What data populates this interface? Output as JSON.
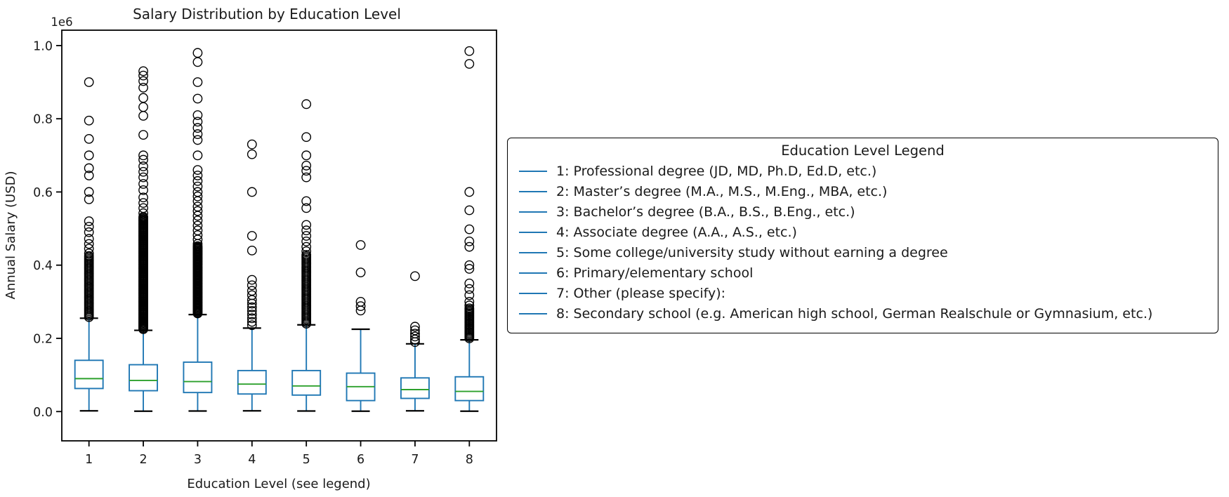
{
  "chart_data": {
    "type": "boxplot",
    "title": "Salary Distribution by Education Level",
    "xlabel": "Education Level (see legend)",
    "ylabel": "Annual Salary (USD)",
    "offset_label": "1e6",
    "x_categories": [
      "1",
      "2",
      "3",
      "4",
      "5",
      "6",
      "7",
      "8"
    ],
    "y_tick_labels": [
      "0.0",
      "0.2",
      "0.4",
      "0.6",
      "0.8",
      "1.0"
    ],
    "y_tick_values": [
      0,
      200000,
      400000,
      600000,
      800000,
      1000000
    ],
    "ylim": [
      -80000,
      1042000
    ],
    "grid": false,
    "colors": {
      "box": "#1f77b4",
      "whisker": "#1f77b4",
      "median": "#2ca02c",
      "cap": "#000000",
      "flier": "#000000",
      "text": "#1a1a1a",
      "spine": "#000000"
    },
    "groups": [
      {
        "label": "1",
        "whislo": 2000,
        "q1": 63000,
        "med": 90000,
        "q3": 140000,
        "whishi": 255000,
        "fliers": [
          900000,
          795000,
          745000,
          700000,
          665000,
          645000,
          600000,
          580000,
          520000,
          505000,
          490000,
          472000,
          458000,
          445000,
          432000
        ],
        "flier_band": {
          "from": 258000,
          "to": 425000,
          "count": 42
        }
      },
      {
        "label": "2",
        "whislo": 1000,
        "q1": 57000,
        "med": 85000,
        "q3": 128000,
        "whishi": 222000,
        "fliers": [
          930000,
          918000,
          903000,
          885000,
          857000,
          832000,
          808000,
          756000,
          700000,
          688000,
          670000,
          655000,
          640000,
          622000,
          605000,
          585000,
          570000,
          556000,
          542000
        ],
        "flier_band": {
          "from": 225000,
          "to": 532000,
          "count": 110
        }
      },
      {
        "label": "3",
        "whislo": 1500,
        "q1": 52000,
        "med": 82000,
        "q3": 135000,
        "whishi": 265000,
        "fliers": [
          980000,
          955000,
          900000,
          855000,
          810000,
          792000,
          775000,
          758000,
          742000,
          700000,
          660000,
          645000,
          630000,
          615000,
          600000,
          588000,
          575000,
          560000,
          548000,
          535000,
          522000,
          508000,
          495000,
          482000,
          470000,
          458000
        ],
        "flier_band": {
          "from": 268000,
          "to": 452000,
          "count": 72
        }
      },
      {
        "label": "4",
        "whislo": 2000,
        "q1": 48000,
        "med": 75000,
        "q3": 112000,
        "whishi": 228000,
        "fliers": [
          730000,
          703000,
          600000,
          480000,
          440000,
          360000,
          345000,
          330000,
          318000,
          305000,
          295000,
          285000,
          275000,
          265000,
          255000,
          245000,
          236000
        ],
        "flier_band": null
      },
      {
        "label": "5",
        "whislo": 1500,
        "q1": 45000,
        "med": 70000,
        "q3": 112000,
        "whishi": 237000,
        "fliers": [
          840000,
          750000,
          700000,
          672000,
          658000,
          640000,
          575000,
          556000,
          510000,
          495000,
          480000,
          465000,
          450000,
          438000
        ],
        "flier_band": {
          "from": 240000,
          "to": 428000,
          "count": 48
        }
      },
      {
        "label": "6",
        "whislo": 1000,
        "q1": 30000,
        "med": 68000,
        "q3": 105000,
        "whishi": 225000,
        "fliers": [
          455000,
          380000,
          300000,
          288000,
          276000
        ],
        "flier_band": null
      },
      {
        "label": "7",
        "whislo": 2000,
        "q1": 36000,
        "med": 60000,
        "q3": 92000,
        "whishi": 185000,
        "fliers": [
          370000,
          232000,
          222000,
          213000,
          205000,
          197000,
          190000
        ],
        "flier_band": null
      },
      {
        "label": "8",
        "whislo": 1000,
        "q1": 30000,
        "med": 55000,
        "q3": 95000,
        "whishi": 196000,
        "fliers": [
          985000,
          950000,
          600000,
          550000,
          498000,
          465000,
          450000,
          400000,
          390000,
          350000,
          335000,
          318000,
          300000,
          290000
        ],
        "flier_band": {
          "from": 200000,
          "to": 282000,
          "count": 24
        }
      }
    ]
  },
  "legend": {
    "title": "Education Level Legend",
    "items": [
      {
        "label": "1: Professional degree (JD, MD, Ph.D, Ed.D, etc.)"
      },
      {
        "label": "2: Master’s degree (M.A., M.S., M.Eng., MBA, etc.)"
      },
      {
        "label": "3: Bachelor’s degree (B.A., B.S., B.Eng., etc.)"
      },
      {
        "label": "4: Associate degree (A.A., A.S., etc.)"
      },
      {
        "label": "5: Some college/university study without earning a degree"
      },
      {
        "label": "6: Primary/elementary school"
      },
      {
        "label": "7: Other (please specify):"
      },
      {
        "label": "8: Secondary school (e.g. American high school, German Realschule or Gymnasium, etc.)"
      }
    ]
  }
}
